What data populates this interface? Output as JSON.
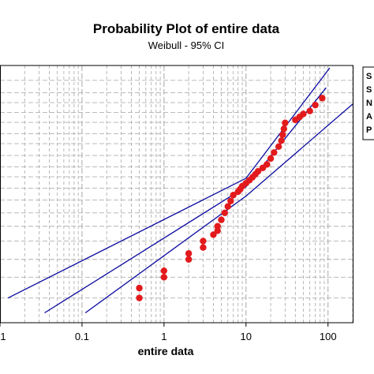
{
  "chart_data": {
    "type": "scatter",
    "title": "Probability Plot of entire data",
    "subtitle": "Weibull - 95% CI",
    "xlabel": "entire data",
    "ylabel": "",
    "x_scale": "log",
    "xlim": [
      0.01,
      200
    ],
    "y_scale": "weibull-probability",
    "grid": true,
    "x_tick_labels": [
      "1",
      "0.1",
      "1",
      "10",
      "100"
    ],
    "legend_stub": [
      "S",
      "S",
      "N",
      "A",
      "P"
    ],
    "series": [
      {
        "type": "scatter",
        "color": "#e31a1c",
        "points": [
          {
            "x": 0.5,
            "y": 0.3
          },
          {
            "x": 0.5,
            "y": 0.5
          },
          {
            "x": 1.0,
            "y": 0.72
          },
          {
            "x": 1.0,
            "y": 0.85
          },
          {
            "x": 2.0,
            "y": 1.08
          },
          {
            "x": 2.0,
            "y": 1.2
          },
          {
            "x": 3.0,
            "y": 1.32
          },
          {
            "x": 3.0,
            "y": 1.45
          },
          {
            "x": 4.0,
            "y": 1.58
          },
          {
            "x": 4.5,
            "y": 1.66
          },
          {
            "x": 4.5,
            "y": 1.75
          },
          {
            "x": 5.0,
            "y": 1.88
          },
          {
            "x": 5.5,
            "y": 2.02
          },
          {
            "x": 6.0,
            "y": 2.15
          },
          {
            "x": 6.5,
            "y": 2.26
          },
          {
            "x": 7.0,
            "y": 2.38
          },
          {
            "x": 8.0,
            "y": 2.45
          },
          {
            "x": 8.5,
            "y": 2.5
          },
          {
            "x": 9.0,
            "y": 2.56
          },
          {
            "x": 10.0,
            "y": 2.62
          },
          {
            "x": 11.0,
            "y": 2.68
          },
          {
            "x": 12.0,
            "y": 2.74
          },
          {
            "x": 13.0,
            "y": 2.8
          },
          {
            "x": 14.0,
            "y": 2.86
          },
          {
            "x": 16.0,
            "y": 2.93
          },
          {
            "x": 18.0,
            "y": 3.0
          },
          {
            "x": 20.0,
            "y": 3.12
          },
          {
            "x": 22.0,
            "y": 3.24
          },
          {
            "x": 25.0,
            "y": 3.36
          },
          {
            "x": 27.0,
            "y": 3.48
          },
          {
            "x": 28.0,
            "y": 3.6
          },
          {
            "x": 29.0,
            "y": 3.72
          },
          {
            "x": 30.0,
            "y": 3.84
          },
          {
            "x": 40.0,
            "y": 3.9
          },
          {
            "x": 45.0,
            "y": 3.96
          },
          {
            "x": 50.0,
            "y": 4.02
          },
          {
            "x": 60.0,
            "y": 4.08
          },
          {
            "x": 70.0,
            "y": 4.2
          },
          {
            "x": 85.0,
            "y": 4.34
          }
        ]
      },
      {
        "type": "line",
        "color": "#0a0aa0",
        "name": "",
        "points": [
          {
            "x": 0.035,
            "y": 0.0
          },
          {
            "x": 10.0,
            "y": 2.55
          },
          {
            "x": 95.0,
            "y": 4.55
          }
        ]
      },
      {
        "type": "line",
        "color": "#0a0aa0",
        "name": "",
        "points": [
          {
            "x": 0.0125,
            "y": 0.3
          },
          {
            "x": 10.0,
            "y": 2.72
          },
          {
            "x": 105.0,
            "y": 4.95
          }
        ]
      },
      {
        "type": "line",
        "color": "#0a0aa0",
        "name": "",
        "points": [
          {
            "x": 0.11,
            "y": 0.0
          },
          {
            "x": 10.0,
            "y": 2.36
          },
          {
            "x": 200.0,
            "y": 4.22
          }
        ]
      }
    ]
  },
  "colors": {
    "points": "#e31a1c",
    "fit_lines": "#0a0aa0",
    "grid": "#b0b0b0",
    "frame": "#000000"
  }
}
